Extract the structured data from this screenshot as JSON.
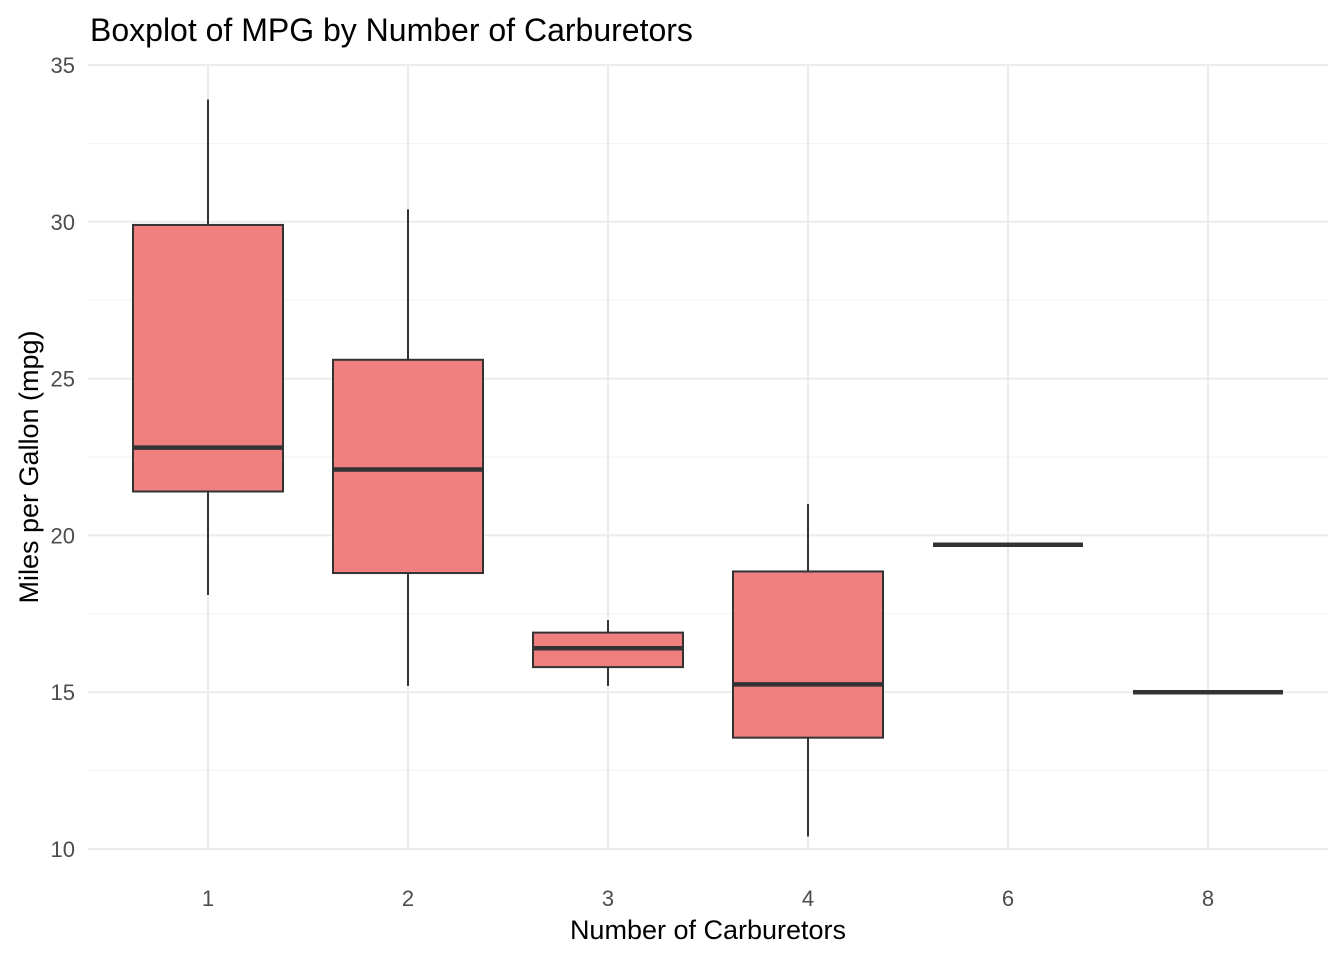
{
  "chart_data": {
    "type": "boxplot",
    "title": "Boxplot of MPG by Number of Carburetors",
    "xlabel": "Number of Carburetors",
    "ylabel": "Miles per Gallon (mpg)",
    "ylim": [
      10,
      35
    ],
    "yticks": [
      10,
      15,
      20,
      25,
      30,
      35
    ],
    "grid": true,
    "fill_color": "#F08080",
    "line_color": "#333333",
    "categories": [
      "1",
      "2",
      "3",
      "4",
      "6",
      "8"
    ],
    "boxes": [
      {
        "category": "1",
        "min": 18.1,
        "q1": 21.4,
        "median": 22.8,
        "q3": 29.9,
        "max": 33.9
      },
      {
        "category": "2",
        "min": 15.2,
        "q1": 18.8,
        "median": 22.1,
        "q3": 25.6,
        "max": 30.4
      },
      {
        "category": "3",
        "min": 15.2,
        "q1": 15.8,
        "median": 16.4,
        "q3": 16.9,
        "max": 17.3
      },
      {
        "category": "4",
        "min": 10.4,
        "q1": 13.55,
        "median": 15.25,
        "q3": 18.85,
        "max": 21.0
      },
      {
        "category": "6",
        "min": 19.7,
        "q1": 19.7,
        "median": 19.7,
        "q3": 19.7,
        "max": 19.7
      },
      {
        "category": "8",
        "min": 15.0,
        "q1": 15.0,
        "median": 15.0,
        "q3": 15.0,
        "max": 15.0
      }
    ]
  }
}
